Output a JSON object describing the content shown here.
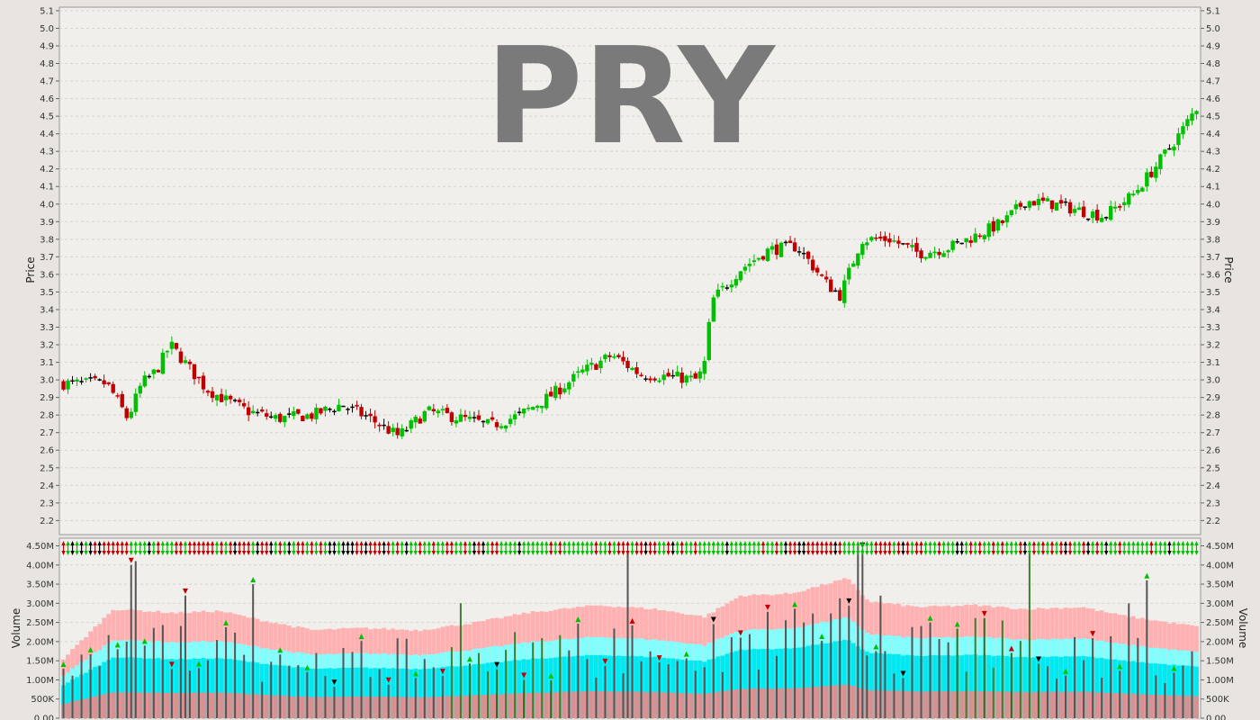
{
  "chart_data": {
    "type": "bar",
    "ticker": "PRY",
    "colors": {
      "up": "#00c000",
      "down": "#c00000",
      "neutral": "#000000",
      "panel_bg": "#f0efec",
      "frame_bg": "#e8e4df",
      "volume_bar": "#555555",
      "band_outer": "#ffb0b0",
      "band_mid": "#80ffff",
      "band_inner": "#00e8f0",
      "band_base": "#d89090"
    },
    "price_panel": {
      "ylabel": "Price",
      "ylim": [
        2.12,
        5.12
      ],
      "ticks": [
        "2.2",
        "2.3",
        "2.4",
        "2.5",
        "2.6",
        "2.7",
        "2.8",
        "2.9",
        "3.0",
        "3.1",
        "3.2",
        "3.3",
        "3.4",
        "3.5",
        "3.6",
        "3.7",
        "3.8",
        "3.9",
        "4.0",
        "4.1",
        "4.2",
        "4.3",
        "4.4",
        "4.5",
        "4.6",
        "4.7",
        "4.8",
        "4.9",
        "5.0",
        "5.1"
      ],
      "grid": true,
      "series_type": "ohlc",
      "bar_count": 252,
      "anchor_closes": [
        [
          0,
          2.98
        ],
        [
          12,
          2.98
        ],
        [
          14,
          2.92
        ],
        [
          18,
          2.78
        ],
        [
          22,
          2.98
        ],
        [
          26,
          3.05
        ],
        [
          30,
          3.2
        ],
        [
          34,
          3.1
        ],
        [
          40,
          2.95
        ],
        [
          46,
          2.88
        ],
        [
          52,
          2.82
        ],
        [
          60,
          2.78
        ],
        [
          70,
          2.8
        ],
        [
          78,
          2.86
        ],
        [
          86,
          2.78
        ],
        [
          94,
          2.68
        ],
        [
          102,
          2.82
        ],
        [
          112,
          2.78
        ],
        [
          120,
          2.74
        ],
        [
          128,
          2.8
        ],
        [
          136,
          2.9
        ],
        [
          146,
          3.05
        ],
        [
          154,
          3.14
        ],
        [
          162,
          3.03
        ],
        [
          170,
          3.02
        ],
        [
          178,
          3.0
        ],
        [
          180,
          3.1
        ],
        [
          182,
          3.45
        ],
        [
          190,
          3.63
        ],
        [
          198,
          3.74
        ],
        [
          206,
          3.76
        ],
        [
          214,
          3.55
        ],
        [
          218,
          3.48
        ],
        [
          224,
          3.8
        ],
        [
          232,
          3.8
        ],
        [
          240,
          3.72
        ],
        [
          248,
          3.75
        ],
        [
          256,
          3.82
        ],
        [
          264,
          3.9
        ],
        [
          270,
          4.02
        ],
        [
          278,
          4.0
        ],
        [
          286,
          3.96
        ],
        [
          292,
          3.93
        ],
        [
          300,
          4.05
        ],
        [
          306,
          4.2
        ],
        [
          314,
          4.42
        ],
        [
          318,
          4.55
        ]
      ]
    },
    "volume_panel": {
      "ylabel": "Volume",
      "ylim": [
        0,
        4.7
      ],
      "ticks": [
        "0.00",
        "500K",
        "1.00M",
        "1.50M",
        "2.00M",
        "2.50M",
        "3.00M",
        "3.50M",
        "4.00M",
        "4.50M"
      ],
      "tick_values": [
        0,
        0.5,
        1.0,
        1.5,
        2.0,
        2.5,
        3.0,
        3.5,
        4.0,
        4.5
      ],
      "unit": "millions",
      "grid": true,
      "band_profile": [
        [
          0,
          1.55
        ],
        [
          14,
          2.85
        ],
        [
          32,
          2.75
        ],
        [
          44,
          2.8
        ],
        [
          56,
          2.55
        ],
        [
          70,
          2.3
        ],
        [
          84,
          2.35
        ],
        [
          100,
          2.3
        ],
        [
          116,
          2.5
        ],
        [
          130,
          2.75
        ],
        [
          150,
          2.95
        ],
        [
          166,
          2.85
        ],
        [
          180,
          2.65
        ],
        [
          190,
          3.2
        ],
        [
          204,
          3.25
        ],
        [
          214,
          3.5
        ],
        [
          220,
          3.65
        ],
        [
          226,
          3.05
        ],
        [
          240,
          2.9
        ],
        [
          256,
          2.95
        ],
        [
          270,
          2.85
        ],
        [
          286,
          2.9
        ],
        [
          296,
          2.7
        ],
        [
          310,
          2.5
        ],
        [
          322,
          2.35
        ]
      ]
    }
  }
}
